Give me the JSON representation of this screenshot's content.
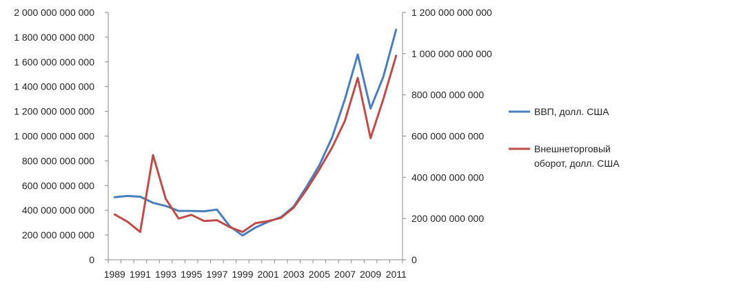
{
  "chart_data": {
    "type": "line",
    "title": "",
    "xlabel": "",
    "ylabel": "",
    "ylabel_right": "",
    "grid": false,
    "legend_position": "right",
    "x_tick_labels": [
      "1989",
      "1991",
      "1993",
      "1995",
      "1997",
      "1999",
      "2001",
      "2003",
      "2005",
      "2007",
      "2009",
      "2011"
    ],
    "y_left": {
      "lim": [
        0,
        2000000000000
      ],
      "tick_labels": [
        "0",
        "200 000 000 000",
        "400 000 000 000",
        "600 000 000 000",
        "800 000 000 000",
        "1 000 000 000 000",
        "1 200 000 000 000",
        "1 400 000 000 000",
        "1 600 000 000 000",
        "1 800 000 000 000",
        "2 000 000 000 000"
      ]
    },
    "y_right": {
      "lim": [
        0,
        1200000000000
      ],
      "tick_labels": [
        "0",
        "200 000 000 000",
        "400 000 000 000",
        "600 000 000 000",
        "800 000 000 000",
        "1 000 000 000 000",
        "1 200 000 000 000"
      ]
    },
    "x": [
      1989,
      1990,
      1991,
      1992,
      1993,
      1994,
      1995,
      1996,
      1997,
      1998,
      1999,
      2000,
      2001,
      2002,
      2003,
      2004,
      2005,
      2006,
      2007,
      2008,
      2009,
      2010,
      2011
    ],
    "series": [
      {
        "name": "ВВП, долл. США",
        "axis": "left",
        "color": "#4a7ebb",
        "values": [
          506000000000,
          516000000000,
          510000000000,
          460000000000,
          435000000000,
          395000000000,
          395000000000,
          392000000000,
          405000000000,
          271000000000,
          196000000000,
          260000000000,
          307000000000,
          345000000000,
          430000000000,
          591000000000,
          764000000000,
          990000000000,
          1300000000000,
          1660000000000,
          1223000000000,
          1480000000000,
          1860000000000
        ]
      },
      {
        "name": "Внешнеторговый оборот, долл. США",
        "axis": "right",
        "color": "#be4b48",
        "values": [
          220000000000,
          185000000000,
          135000000000,
          508000000000,
          295000000000,
          200000000000,
          218000000000,
          188000000000,
          192000000000,
          158000000000,
          135000000000,
          177000000000,
          188000000000,
          203000000000,
          253000000000,
          340000000000,
          438000000000,
          545000000000,
          675000000000,
          882000000000,
          590000000000,
          780000000000,
          990000000000
        ]
      }
    ]
  }
}
